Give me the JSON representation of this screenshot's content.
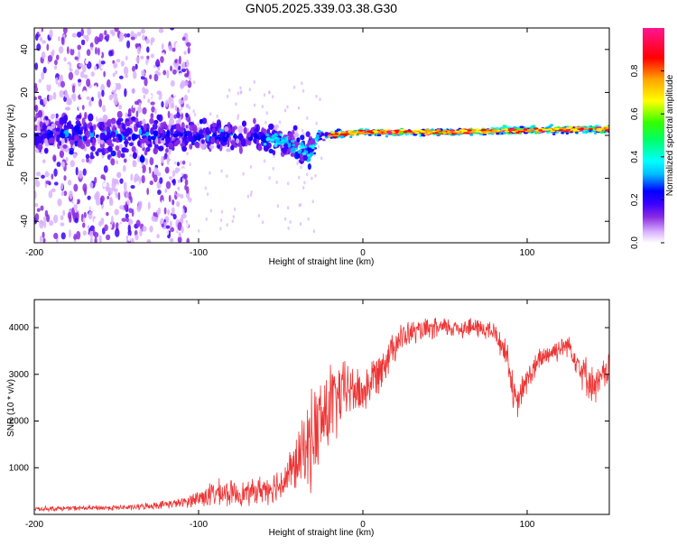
{
  "title": "GN05.2025.339.03.38.G30",
  "chart_data": [
    {
      "type": "heatmap",
      "name": "spectrogram",
      "title": "GN05.2025.339.03.38.G30",
      "xlabel": "Height of straight line (km)",
      "ylabel": "Frequency (Hz)",
      "xlim": [
        -200,
        150
      ],
      "ylim": [
        -50,
        50
      ],
      "xticks": [
        -200,
        -100,
        0,
        100
      ],
      "yticks": [
        -40,
        -20,
        0,
        20,
        40
      ],
      "colorbar": {
        "label": "Normalized spectral amplitude",
        "range": [
          0,
          1
        ],
        "ticks": [
          "0.0",
          "0.2",
          "0.4",
          "0.6",
          "0.8"
        ],
        "colors": [
          "#ffffff",
          "#d9b3ff",
          "#8a2be2",
          "#3b00ff",
          "#0000ff",
          "#00bfff",
          "#00ffff",
          "#00ff66",
          "#33ff00",
          "#ffff00",
          "#ffa500",
          "#ff0000",
          "#ff1493"
        ]
      },
      "noise_region_km": [
        -200,
        -115
      ],
      "ridge": [
        {
          "x": -115,
          "f": 0.0,
          "spread": 8
        },
        {
          "x": -80,
          "f": 0.0,
          "spread": 7
        },
        {
          "x": -50,
          "f": -2.0,
          "spread": 6
        },
        {
          "x": -35,
          "f": -8.0,
          "spread": 9
        },
        {
          "x": -25,
          "f": 0.0,
          "spread": 2
        },
        {
          "x": 0,
          "f": 1.5,
          "spread": 1.5
        },
        {
          "x": 50,
          "f": 1.5,
          "spread": 1.5
        },
        {
          "x": 100,
          "f": 2.5,
          "spread": 2
        },
        {
          "x": 150,
          "f": 3.0,
          "spread": 2
        }
      ]
    },
    {
      "type": "line",
      "name": "snr",
      "xlabel": "Height of straight line (km)",
      "ylabel": "SNR (10 * v/v)",
      "xlim": [
        -200,
        150
      ],
      "ylim": [
        0,
        4600
      ],
      "xticks": [
        -200,
        -100,
        0,
        100
      ],
      "yticks": [
        1000,
        2000,
        3000,
        4000
      ],
      "color": "#ee3333",
      "envelope": [
        {
          "x": -200,
          "base": 120,
          "amp": 60
        },
        {
          "x": -140,
          "base": 150,
          "amp": 70
        },
        {
          "x": -110,
          "base": 250,
          "amp": 120
        },
        {
          "x": -90,
          "base": 450,
          "amp": 350
        },
        {
          "x": -70,
          "base": 450,
          "amp": 300
        },
        {
          "x": -50,
          "base": 650,
          "amp": 450
        },
        {
          "x": -40,
          "base": 1100,
          "amp": 700
        },
        {
          "x": -30,
          "base": 1700,
          "amp": 1300
        },
        {
          "x": -20,
          "base": 2300,
          "amp": 1200
        },
        {
          "x": -10,
          "base": 2700,
          "amp": 700
        },
        {
          "x": 0,
          "base": 2600,
          "amp": 600
        },
        {
          "x": 10,
          "base": 3100,
          "amp": 550
        },
        {
          "x": 20,
          "base": 3700,
          "amp": 450
        },
        {
          "x": 30,
          "base": 3900,
          "amp": 300
        },
        {
          "x": 50,
          "base": 4000,
          "amp": 260
        },
        {
          "x": 70,
          "base": 4000,
          "amp": 260
        },
        {
          "x": 80,
          "base": 3900,
          "amp": 280
        },
        {
          "x": 88,
          "base": 3400,
          "amp": 400
        },
        {
          "x": 93,
          "base": 2300,
          "amp": 450
        },
        {
          "x": 100,
          "base": 2900,
          "amp": 350
        },
        {
          "x": 110,
          "base": 3400,
          "amp": 320
        },
        {
          "x": 125,
          "base": 3650,
          "amp": 280
        },
        {
          "x": 135,
          "base": 3000,
          "amp": 500
        },
        {
          "x": 142,
          "base": 2700,
          "amp": 450
        },
        {
          "x": 150,
          "base": 3200,
          "amp": 400
        }
      ]
    }
  ]
}
